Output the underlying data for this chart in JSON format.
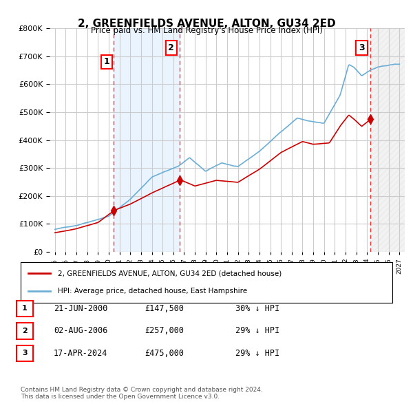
{
  "title": "2, GREENFIELDS AVENUE, ALTON, GU34 2ED",
  "subtitle": "Price paid vs. HM Land Registry's House Price Index (HPI)",
  "ylim": [
    0,
    800000
  ],
  "yticks": [
    0,
    100000,
    200000,
    300000,
    400000,
    500000,
    600000,
    700000,
    800000
  ],
  "xlabel_years": [
    "1995",
    "1996",
    "1997",
    "1998",
    "1999",
    "2000",
    "2001",
    "2002",
    "2003",
    "2004",
    "2005",
    "2006",
    "2007",
    "2008",
    "2009",
    "2010",
    "2011",
    "2012",
    "2013",
    "2014",
    "2015",
    "2016",
    "2017",
    "2018",
    "2019",
    "2020",
    "2021",
    "2022",
    "2023",
    "2024",
    "2025",
    "2026",
    "2027"
  ],
  "sale_dates": [
    "2000-06-21",
    "2006-08-02",
    "2024-04-17"
  ],
  "sale_prices": [
    147500,
    257000,
    475000
  ],
  "sale_labels": [
    "1",
    "2",
    "3"
  ],
  "hpi_color": "#6baed6",
  "price_color": "#cc0000",
  "background_color": "#ffffff",
  "grid_color": "#cccccc",
  "sale_shade_color": "#ddeeff",
  "future_hatch_color": "#cccccc",
  "legend_items": [
    "2, GREENFIELDS AVENUE, ALTON, GU34 2ED (detached house)",
    "HPI: Average price, detached house, East Hampshire"
  ],
  "table_rows": [
    {
      "label": "1",
      "date": "21-JUN-2000",
      "price": "£147,500",
      "note": "30% ↓ HPI"
    },
    {
      "label": "2",
      "date": "02-AUG-2006",
      "price": "£257,000",
      "note": "29% ↓ HPI"
    },
    {
      "label": "3",
      "date": "17-APR-2024",
      "price": "£475,000",
      "note": "29% ↓ HPI"
    }
  ],
  "footnote": "Contains HM Land Registry data © Crown copyright and database right 2024.\nThis data is licensed under the Open Government Licence v3.0."
}
